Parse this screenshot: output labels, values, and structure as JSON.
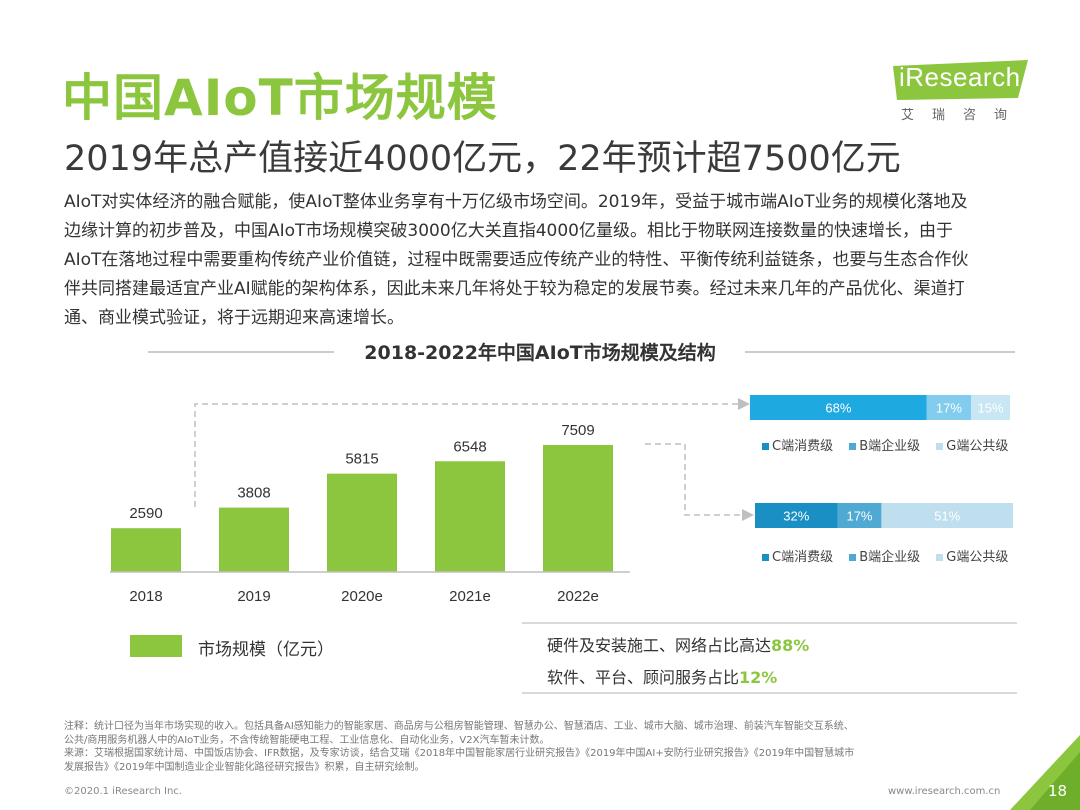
{
  "header": {
    "title": "中国AIoT市场规模",
    "subtitle": "2019年总产值接近4000亿元，22年预计超7500亿元"
  },
  "logo": {
    "text": "iResearch",
    "sub": "艾瑞咨询"
  },
  "body_text": [
    "AIoT对实体经济的融合赋能，使AIoT整体业务享有十万亿级市场空间。2019年，受益于城市端AIoT业务的规模化落地及",
    "边缘计算的初步普及，中国AIoT市场规模突破3000亿大关直指4000亿量级。相比于物联网连接数量的快速增长，由于",
    "AIoT在落地过程中需要重构传统产业价值链，过程中既需要适应传统产业的特性、平衡传统利益链条，也要与生态合作伙",
    "伴共同搭建最适宜产业AI赋能的架构体系，因此未来几年将处于较为稳定的发展节奏。经过未来几年的产品优化、渠道打",
    "通、商业模式验证，将于远期迎来高速增长。"
  ],
  "chart_data": {
    "type": "bar",
    "title": "2018-2022年中国AIoT市场规模及结构",
    "categories": [
      "2018",
      "2019",
      "2020e",
      "2021e",
      "2022e"
    ],
    "values": [
      2590,
      3808,
      5815,
      6548,
      7509
    ],
    "legend": "市场规模（亿元）",
    "bar_color": "#8cc63f",
    "structure_bars": [
      {
        "segments": [
          {
            "name": "C端消费级",
            "value": 68,
            "label": "68%",
            "color": "#1fa9e1"
          },
          {
            "name": "B端企业级",
            "value": 17,
            "label": "17%",
            "color": "#82cdee"
          },
          {
            "name": "G端公共级",
            "value": 15,
            "label": "15%",
            "color": "#c8e6f3"
          }
        ],
        "legend": [
          "C端消费级",
          "B端企业级",
          "G端公共级"
        ]
      },
      {
        "segments": [
          {
            "name": "C端消费级",
            "value": 32,
            "label": "32%",
            "color": "#1a8fc4"
          },
          {
            "name": "B端企业级",
            "value": 17,
            "label": "17%",
            "color": "#4fa9d2"
          },
          {
            "name": "G端公共级",
            "value": 51,
            "label": "51%",
            "color": "#bfdeee"
          }
        ],
        "legend": [
          "C端消费级",
          "B端企业级",
          "G端公共级"
        ]
      }
    ]
  },
  "legend_colors": {
    "c": "#1a8fc4",
    "b": "#4fa9d2",
    "g": "#bfdeee"
  },
  "summary": {
    "line1_text": "硬件及安装施工、网络占比高达",
    "line1_value": "88%",
    "line2_text": "软件、平台、顾问服务占比",
    "line2_value": "12%"
  },
  "footnote": [
    "注释：统计口径为当年市场实现的收入。包括具备AI感知能力的智能家居、商品房与公租房智能管理、智慧办公、智慧酒店、工业、城市大脑、城市治理、前装汽车智能交互系统、",
    "公共/商用服务机器人中的AIoT业务，不含传统智能硬电工程、工业信息化、自动化业务，V2X汽车暂未计数。",
    "来源：艾瑞根据国家统计局、中国饭店协会、IFR数据，及专家访谈，结合艾瑞《2018年中国智能家居行业研究报告》《2019年中国AI+安防行业研究报告》《2019年中国智慧城市",
    "发展报告》《2019年中国制造业企业智能化路径研究报告》积累，自主研究绘制。"
  ],
  "footer": {
    "left": "©2020.1 iResearch Inc.",
    "right": "www.iresearch.com.cn",
    "page": "18"
  }
}
